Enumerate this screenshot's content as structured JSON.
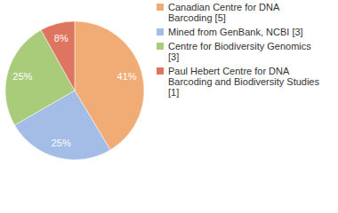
{
  "chart_data": {
    "type": "pie",
    "categories": [
      "Canadian Centre for DNA Barcoding [5]",
      "Mined from GenBank, NCBI [3]",
      "Centre for Biodiversity Genomics [3]",
      "Paul Hebert Centre for DNA Barcoding and Biodiversity Studies [1]"
    ],
    "values": [
      41,
      25,
      25,
      8
    ],
    "value_labels": [
      "41%",
      "25%",
      "25%",
      "8%"
    ],
    "colors": [
      "#f1ab74",
      "#a3bde6",
      "#a9cc7b",
      "#de7561"
    ],
    "data_labels": true,
    "legend": "right"
  }
}
